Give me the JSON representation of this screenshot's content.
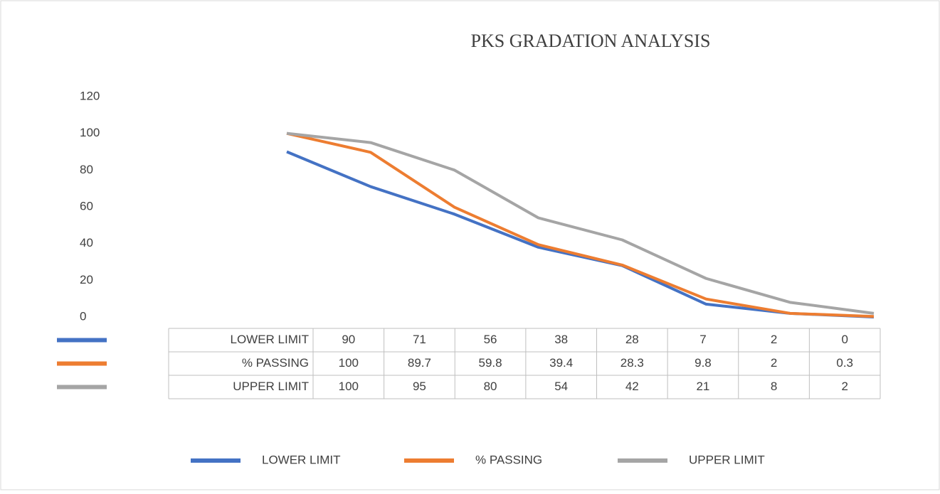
{
  "chart_data": {
    "type": "line",
    "title": "PKS GRADATION ANALYSIS",
    "series": [
      {
        "name": "LOWER LIMIT",
        "color": "#4472c4",
        "values": [
          90,
          71,
          56,
          38,
          28,
          7,
          2,
          0
        ]
      },
      {
        "name": "% PASSING",
        "color": "#ed7d31",
        "values": [
          100,
          89.7,
          59.8,
          39.4,
          28.3,
          9.8,
          2,
          0.3
        ]
      },
      {
        "name": "UPPER LIMIT",
        "color": "#a5a5a5",
        "values": [
          100,
          95,
          80,
          54,
          42,
          21,
          8,
          2
        ]
      }
    ],
    "ylim": [
      0,
      120
    ],
    "yticks": [
      0,
      20,
      40,
      60,
      80,
      100,
      120
    ],
    "grid": false,
    "legend": "bottom"
  }
}
